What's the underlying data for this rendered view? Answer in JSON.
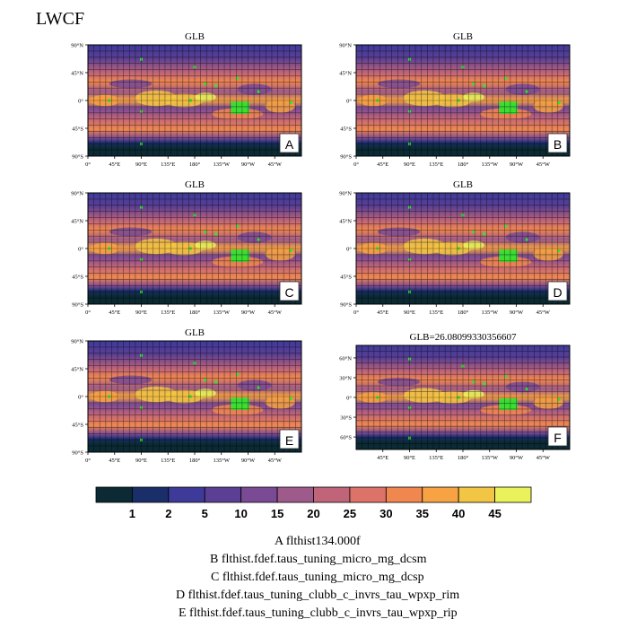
{
  "chart_data": {
    "type": "heatmap",
    "title": "LWCF",
    "panels": [
      {
        "title": "GLB",
        "letter": "A",
        "lat_ticks": [
          "90°N",
          "45°N",
          "0°",
          "45°S",
          "90°S"
        ],
        "lon_ticks": [
          "0°",
          "45°E",
          "90°E",
          "135°E",
          "180°",
          "135°W",
          "90°W",
          "45°W"
        ]
      },
      {
        "title": "GLB",
        "letter": "B",
        "lat_ticks": [
          "90°N",
          "45°N",
          "0°",
          "45°S",
          "90°S"
        ],
        "lon_ticks": [
          "0°",
          "45°E",
          "90°E",
          "135°E",
          "180°",
          "135°W",
          "90°W",
          "45°W"
        ]
      },
      {
        "title": "GLB",
        "letter": "C",
        "lat_ticks": [
          "90°N",
          "45°N",
          "0°",
          "45°S",
          "90°S"
        ],
        "lon_ticks": [
          "0°",
          "45°E",
          "90°E",
          "135°E",
          "180°",
          "135°W",
          "90°W",
          "45°W"
        ]
      },
      {
        "title": "GLB",
        "letter": "D",
        "lat_ticks": [
          "90°N",
          "45°N",
          "0°",
          "45°S",
          "90°S"
        ],
        "lon_ticks": [
          "0°",
          "45°E",
          "90°E",
          "135°E",
          "180°",
          "135°W",
          "90°W",
          "45°W"
        ]
      },
      {
        "title": "GLB",
        "letter": "E",
        "lat_ticks": [
          "90°N",
          "45°N",
          "0°",
          "45°S",
          "90°S"
        ],
        "lon_ticks": [
          "0°",
          "45°E",
          "90°E",
          "135°E",
          "180°",
          "135°W",
          "90°W",
          "45°W"
        ]
      },
      {
        "title": "GLB=26.08099330356607",
        "letter": "F",
        "lat_ticks": [
          "60°N",
          "30°N",
          "0°",
          "30°S",
          "60°S"
        ],
        "lon_ticks": [
          "45°E",
          "90°E",
          "135°E",
          "180°",
          "135°W",
          "90°W",
          "45°W"
        ]
      }
    ],
    "colorbar": {
      "levels": [
        "1",
        "2",
        "5",
        "10",
        "15",
        "20",
        "25",
        "30",
        "35",
        "40",
        "45"
      ],
      "colors": [
        "#0b2a33",
        "#1a2f6a",
        "#3e3a9a",
        "#5a3f94",
        "#7a4a94",
        "#9e5a8a",
        "#bf6479",
        "#dc7268",
        "#f0874f",
        "#f7a243",
        "#f3c544",
        "#e9f25a"
      ]
    },
    "cases": [
      {
        "letter": "A",
        "name": "flthist134.000f"
      },
      {
        "letter": "B",
        "name": "flthist.fdef.taus_tuning_micro_mg_dcsm"
      },
      {
        "letter": "C",
        "name": "flthist.fdef.taus_tuning_micro_mg_dcsp"
      },
      {
        "letter": "D",
        "name": "flthist.fdef.taus_tuning_clubb_c_invrs_tau_wpxp_rim"
      },
      {
        "letter": "E",
        "name": "flthist.fdef.taus_tuning_clubb_c_invrs_tau_wpxp_rip"
      }
    ]
  }
}
